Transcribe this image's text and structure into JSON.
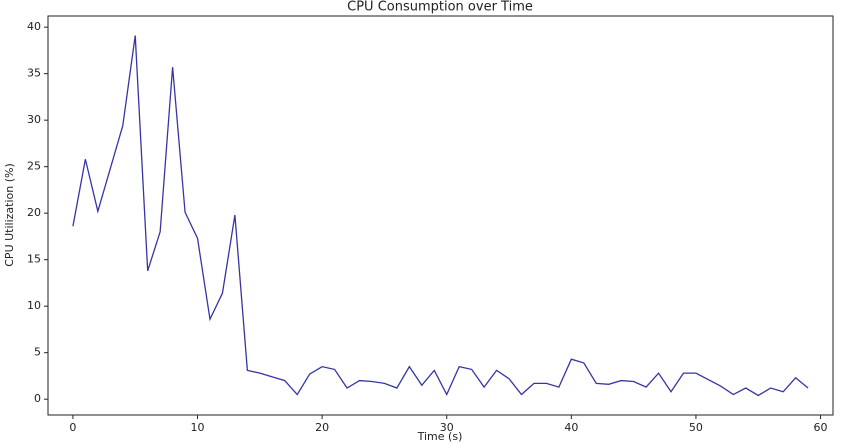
{
  "chart_data": {
    "type": "line",
    "title": "CPU Consumption over Time",
    "x_label": "Time (s)",
    "y_label": "CPU Utilization (%)",
    "x": [
      0,
      1,
      2,
      3,
      4,
      5,
      6,
      7,
      8,
      9,
      10,
      11,
      12,
      13,
      14,
      15,
      16,
      17,
      18,
      19,
      20,
      21,
      22,
      23,
      24,
      25,
      26,
      27,
      28,
      29,
      30,
      31,
      32,
      33,
      34,
      35,
      36,
      37,
      38,
      39,
      40,
      41,
      42,
      43,
      44,
      45,
      46,
      47,
      48,
      49,
      50,
      51,
      52,
      53,
      54,
      55,
      56,
      57,
      58,
      59
    ],
    "series": [
      {
        "name": "CPU Utilization",
        "color": "#3535a8",
        "values": [
          18.6,
          25.8,
          20.2,
          24.8,
          29.4,
          39.1,
          13.8,
          18.0,
          35.7,
          20.1,
          17.3,
          8.6,
          11.4,
          19.8,
          3.1,
          2.8,
          2.4,
          2.0,
          0.5,
          2.7,
          3.5,
          3.2,
          1.2,
          2.0,
          1.9,
          1.7,
          1.2,
          3.5,
          1.5,
          3.1,
          0.5,
          3.5,
          3.2,
          1.3,
          3.1,
          2.2,
          0.5,
          1.7,
          1.7,
          1.3,
          4.3,
          3.9,
          1.7,
          1.6,
          2.0,
          1.9,
          1.3,
          2.8,
          0.8,
          2.8,
          2.8,
          2.1,
          1.4,
          0.5,
          1.2,
          0.4,
          1.2,
          0.8,
          2.3,
          1.2
        ]
      }
    ],
    "xlim": [
      -2,
      61
    ],
    "ylim": [
      -1.7,
      41.2
    ],
    "xticks": [
      0,
      10,
      20,
      30,
      40,
      50,
      60
    ],
    "yticks": [
      0,
      5,
      10,
      15,
      20,
      25,
      30,
      35,
      40
    ]
  }
}
